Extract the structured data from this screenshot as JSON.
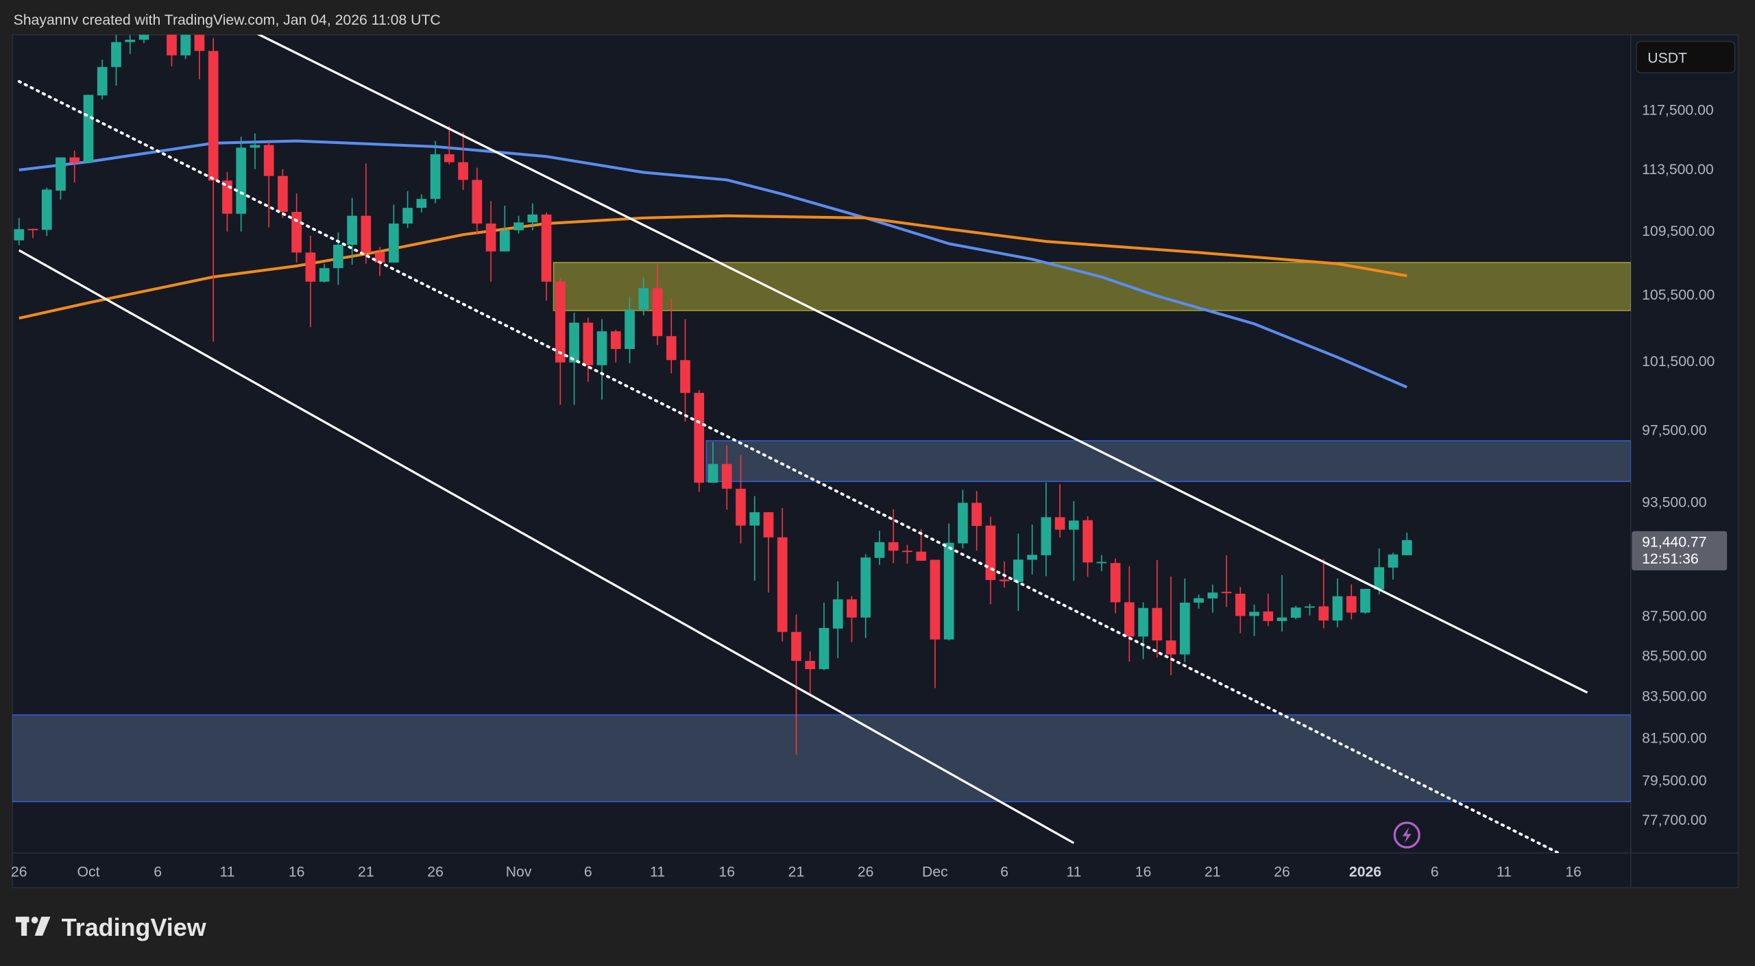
{
  "header": {
    "attribution": "Shayannv created with TradingView.com, Jan 04, 2026 11:08 UTC"
  },
  "branding": {
    "logo_text": "TradingView"
  },
  "price_axis": {
    "currency_button": "USDT"
  },
  "current_price": {
    "value": "91,440.77",
    "countdown": "12:51:36"
  },
  "colors": {
    "up": "#22ab94",
    "down": "#f23645",
    "ma_blue": "#5b8def",
    "ma_orange": "#f08a1c",
    "pane_bg": "#151924",
    "page_bg": "#202020",
    "supply_zone": "#6b6a2e",
    "demand_zone": "#354259",
    "zone_border": "#2f5bd6",
    "event_icon": "#b061c9"
  },
  "icons": {
    "event_marker": "lightning-icon",
    "logo": "tradingview-logo-icon"
  },
  "chart_data": {
    "type": "candlestick",
    "title": "",
    "y_scale": "log",
    "ylim": [
      76480,
      122830
    ],
    "xlim": [
      "2025-09-26",
      "2026-01-20"
    ],
    "grid": false,
    "y_ticks": [
      {
        "value": 117500,
        "label": "117,500.00"
      },
      {
        "value": 113500,
        "label": "113,500.00"
      },
      {
        "value": 109500,
        "label": "109,500.00"
      },
      {
        "value": 105500,
        "label": "105,500.00"
      },
      {
        "value": 101500,
        "label": "101,500.00"
      },
      {
        "value": 97500,
        "label": "97,500.00"
      },
      {
        "value": 93500,
        "label": "93,500.00"
      },
      {
        "value": 87500,
        "label": "87,500.00"
      },
      {
        "value": 85500,
        "label": "85,500.00"
      },
      {
        "value": 83500,
        "label": "83,500.00"
      },
      {
        "value": 81500,
        "label": "81,500.00"
      },
      {
        "value": 79500,
        "label": "79,500.00"
      },
      {
        "value": 77700,
        "label": "77,700.00"
      }
    ],
    "x_ticks": [
      {
        "date": "2025-09-26",
        "label": "26"
      },
      {
        "date": "2025-10-01",
        "label": "Oct"
      },
      {
        "date": "2025-10-06",
        "label": "6"
      },
      {
        "date": "2025-10-11",
        "label": "11"
      },
      {
        "date": "2025-10-16",
        "label": "16"
      },
      {
        "date": "2025-10-21",
        "label": "21"
      },
      {
        "date": "2025-10-26",
        "label": "26"
      },
      {
        "date": "2025-11-01",
        "label": "Nov"
      },
      {
        "date": "2025-11-06",
        "label": "6"
      },
      {
        "date": "2025-11-11",
        "label": "11"
      },
      {
        "date": "2025-11-16",
        "label": "16"
      },
      {
        "date": "2025-11-21",
        "label": "21"
      },
      {
        "date": "2025-11-26",
        "label": "26"
      },
      {
        "date": "2025-12-01",
        "label": "Dec"
      },
      {
        "date": "2025-12-06",
        "label": "6"
      },
      {
        "date": "2025-12-11",
        "label": "11"
      },
      {
        "date": "2025-12-16",
        "label": "16"
      },
      {
        "date": "2025-12-21",
        "label": "21"
      },
      {
        "date": "2025-12-26",
        "label": "26"
      },
      {
        "date": "2026-01-01",
        "label": "2026",
        "bold": true
      },
      {
        "date": "2026-01-06",
        "label": "6"
      },
      {
        "date": "2026-01-11",
        "label": "11"
      },
      {
        "date": "2026-01-16",
        "label": "16"
      }
    ],
    "candles_columns": [
      "date",
      "open",
      "high",
      "low",
      "close"
    ],
    "candles": [
      [
        "2025-09-26",
        108890,
        110320,
        108580,
        109600
      ],
      [
        "2025-09-27",
        109620,
        109640,
        109030,
        109600
      ],
      [
        "2025-09-28",
        109560,
        112290,
        109170,
        112160
      ],
      [
        "2025-09-29",
        112090,
        114280,
        111500,
        114280
      ],
      [
        "2025-09-30",
        114280,
        114730,
        112620,
        113930
      ],
      [
        "2025-10-01",
        113960,
        118520,
        113930,
        118520
      ],
      [
        "2025-10-02",
        118480,
        120970,
        118200,
        120460
      ],
      [
        "2025-10-03",
        120460,
        122740,
        119160,
        122220
      ],
      [
        "2025-10-04",
        122220,
        122740,
        121370,
        122390
      ],
      [
        "2025-10-05",
        122390,
        125600,
        122140,
        123500
      ],
      [
        "2025-10-06",
        123500,
        126200,
        123100,
        124700
      ],
      [
        "2025-10-07",
        124700,
        125100,
        120500,
        121280
      ],
      [
        "2025-10-08",
        121280,
        124000,
        121010,
        123300
      ],
      [
        "2025-10-09",
        123300,
        123800,
        119600,
        121590
      ],
      [
        "2025-10-10",
        121590,
        122500,
        102650,
        112750
      ],
      [
        "2025-10-11",
        112750,
        113320,
        109450,
        110590
      ],
      [
        "2025-10-12",
        110590,
        115660,
        109450,
        114930
      ],
      [
        "2025-10-13",
        114930,
        115890,
        113500,
        115110
      ],
      [
        "2025-10-14",
        115110,
        115300,
        109720,
        113050
      ],
      [
        "2025-10-15",
        113050,
        113500,
        110320,
        110710
      ],
      [
        "2025-10-16",
        110710,
        111900,
        107500,
        108120
      ],
      [
        "2025-10-17",
        108120,
        109180,
        103520,
        106300
      ],
      [
        "2025-10-18",
        106300,
        107420,
        106250,
        107140
      ],
      [
        "2025-10-19",
        107140,
        109390,
        106100,
        108610
      ],
      [
        "2025-10-20",
        108610,
        111620,
        107350,
        110460
      ],
      [
        "2025-10-21",
        110460,
        113870,
        107420,
        108120
      ],
      [
        "2025-10-22",
        108120,
        108470,
        106660,
        107490
      ],
      [
        "2025-10-23",
        107490,
        111180,
        107490,
        109960
      ],
      [
        "2025-10-24",
        109960,
        112060,
        109680,
        110970
      ],
      [
        "2025-10-25",
        110970,
        111840,
        110680,
        111550
      ],
      [
        "2025-10-26",
        111550,
        115380,
        111260,
        114490
      ],
      [
        "2025-10-27",
        114490,
        116380,
        113810,
        113960
      ],
      [
        "2025-10-28",
        113960,
        115980,
        112130,
        112790
      ],
      [
        "2025-10-29",
        112790,
        113590,
        109250,
        109960
      ],
      [
        "2025-10-30",
        109960,
        111400,
        106300,
        108190
      ],
      [
        "2025-10-31",
        108190,
        111110,
        108190,
        109530
      ],
      [
        "2025-11-01",
        109530,
        110460,
        109320,
        110030
      ],
      [
        "2025-11-02",
        110030,
        111260,
        109530,
        110540
      ],
      [
        "2025-11-03",
        110540,
        110680,
        105140,
        106300
      ],
      [
        "2025-11-04",
        106300,
        106520,
        98940,
        101410
      ],
      [
        "2025-11-05",
        101410,
        104400,
        98940,
        103790
      ],
      [
        "2025-11-06",
        103790,
        104100,
        100280,
        101250
      ],
      [
        "2025-11-07",
        101250,
        104000,
        99240,
        103270
      ],
      [
        "2025-11-08",
        103270,
        103370,
        101410,
        102210
      ],
      [
        "2025-11-09",
        102210,
        105380,
        101370,
        104590
      ],
      [
        "2025-11-10",
        104590,
        106570,
        104240,
        105900
      ],
      [
        "2025-11-11",
        105900,
        107410,
        102450,
        102980
      ],
      [
        "2025-11-12",
        102980,
        105240,
        100770,
        101550
      ],
      [
        "2025-11-13",
        101550,
        104000,
        97980,
        99630
      ],
      [
        "2025-11-14",
        99630,
        99790,
        94050,
        94550
      ],
      [
        "2025-11-15",
        94550,
        96820,
        94550,
        95590
      ],
      [
        "2025-11-16",
        95590,
        96630,
        93080,
        94220
      ],
      [
        "2025-11-17",
        94220,
        96070,
        91260,
        92220
      ],
      [
        "2025-11-18",
        92220,
        93820,
        89310,
        92940
      ],
      [
        "2025-11-19",
        92940,
        92940,
        88690,
        91590
      ],
      [
        "2025-11-20",
        91590,
        93170,
        86200,
        86680
      ],
      [
        "2025-11-21",
        86680,
        87570,
        80710,
        85230
      ],
      [
        "2025-11-22",
        85230,
        85700,
        83610,
        84820
      ],
      [
        "2025-11-23",
        84820,
        88180,
        84770,
        86880
      ],
      [
        "2025-11-24",
        86850,
        89270,
        85370,
        88340
      ],
      [
        "2025-11-25",
        88340,
        88510,
        86170,
        87410
      ],
      [
        "2025-11-26",
        87410,
        90700,
        86370,
        90520
      ],
      [
        "2025-11-27",
        90500,
        91940,
        90130,
        91330
      ],
      [
        "2025-11-28",
        91330,
        93100,
        90230,
        90880
      ],
      [
        "2025-11-29",
        90880,
        91190,
        90190,
        90850
      ],
      [
        "2025-11-30",
        90830,
        92030,
        90350,
        90350
      ],
      [
        "2025-12-01",
        90400,
        90400,
        83890,
        86300
      ],
      [
        "2025-12-02",
        86300,
        92330,
        86250,
        91300
      ],
      [
        "2025-12-03",
        91270,
        94160,
        91000,
        93450
      ],
      [
        "2025-12-04",
        93450,
        94100,
        90880,
        92200
      ],
      [
        "2025-12-05",
        92220,
        92700,
        88090,
        89340
      ],
      [
        "2025-12-06",
        89360,
        90320,
        88950,
        89280
      ],
      [
        "2025-12-07",
        89240,
        91790,
        87750,
        90410
      ],
      [
        "2025-12-08",
        90400,
        92280,
        89630,
        90660
      ],
      [
        "2025-12-09",
        90640,
        94560,
        89540,
        92670
      ],
      [
        "2025-12-10",
        92670,
        94470,
        91580,
        92000
      ],
      [
        "2025-12-11",
        92000,
        93540,
        89300,
        92490
      ],
      [
        "2025-12-12",
        92510,
        92730,
        89510,
        90260
      ],
      [
        "2025-12-13",
        90260,
        90650,
        89810,
        90290
      ],
      [
        "2025-12-14",
        90230,
        90470,
        87630,
        88190
      ],
      [
        "2025-12-15",
        88190,
        90060,
        85200,
        86450
      ],
      [
        "2025-12-16",
        86450,
        88190,
        85320,
        87900
      ],
      [
        "2025-12-17",
        87900,
        90380,
        85400,
        86250
      ],
      [
        "2025-12-18",
        86250,
        89520,
        84520,
        85550
      ],
      [
        "2025-12-19",
        85550,
        89420,
        85170,
        88170
      ],
      [
        "2025-12-20",
        88170,
        88590,
        87860,
        88400
      ],
      [
        "2025-12-21",
        88390,
        89100,
        87660,
        88690
      ],
      [
        "2025-12-22",
        88730,
        90640,
        87950,
        88690
      ],
      [
        "2025-12-23",
        88630,
        88980,
        86620,
        87490
      ],
      [
        "2025-12-24",
        87490,
        88070,
        86470,
        87700
      ],
      [
        "2025-12-25",
        87720,
        88630,
        86970,
        87230
      ],
      [
        "2025-12-26",
        87230,
        89600,
        86700,
        87410
      ],
      [
        "2025-12-27",
        87400,
        88010,
        87310,
        87920
      ],
      [
        "2025-12-28",
        87930,
        88110,
        87510,
        87980
      ],
      [
        "2025-12-29",
        87980,
        90440,
        86870,
        87260
      ],
      [
        "2025-12-30",
        87260,
        89420,
        86910,
        88500
      ],
      [
        "2025-12-31",
        88510,
        89120,
        87310,
        87660
      ],
      [
        "2026-01-01",
        87660,
        88880,
        87600,
        88880
      ],
      [
        "2026-01-02",
        88850,
        91000,
        88590,
        90010
      ],
      [
        "2026-01-03",
        89990,
        90770,
        89360,
        90680
      ],
      [
        "2026-01-04",
        90640,
        91840,
        90640,
        91441
      ]
    ],
    "moving_averages": [
      {
        "color": "#5b8def",
        "points": [
          [
            "2025-09-26",
            113450
          ],
          [
            "2025-10-01",
            113990
          ],
          [
            "2025-10-10",
            115230
          ],
          [
            "2025-10-16",
            115380
          ],
          [
            "2025-10-26",
            115000
          ],
          [
            "2025-11-03",
            114340
          ],
          [
            "2025-11-10",
            113290
          ],
          [
            "2025-11-16",
            112790
          ],
          [
            "2025-11-20",
            111860
          ],
          [
            "2025-11-26",
            110320
          ],
          [
            "2025-12-02",
            108680
          ],
          [
            "2025-12-08",
            107700
          ],
          [
            "2025-12-13",
            106590
          ],
          [
            "2025-12-17",
            105420
          ],
          [
            "2025-12-24",
            103720
          ],
          [
            "2025-12-30",
            101720
          ],
          [
            "2026-01-04",
            99960
          ]
        ]
      },
      {
        "color": "#f08a1c",
        "points": [
          [
            "2025-09-26",
            104060
          ],
          [
            "2025-10-01",
            105000
          ],
          [
            "2025-10-10",
            106590
          ],
          [
            "2025-10-16",
            107280
          ],
          [
            "2025-10-22",
            108190
          ],
          [
            "2025-10-28",
            109250
          ],
          [
            "2025-11-03",
            109960
          ],
          [
            "2025-11-10",
            110320
          ],
          [
            "2025-11-16",
            110460
          ],
          [
            "2025-11-26",
            110320
          ],
          [
            "2025-12-02",
            109600
          ],
          [
            "2025-12-09",
            108820
          ],
          [
            "2025-12-20",
            108120
          ],
          [
            "2025-12-30",
            107420
          ],
          [
            "2026-01-04",
            106660
          ]
        ]
      }
    ],
    "zones": [
      {
        "kind": "supply",
        "start": "2025-11-04",
        "top": 107490,
        "bottom": 104530,
        "fill": "#6b6a2e",
        "border": "#a39c35"
      },
      {
        "kind": "resistance",
        "start": "2025-11-15",
        "top": 96890,
        "bottom": 94620,
        "fill": "#354259",
        "border": "#2f5bd6"
      },
      {
        "kind": "demand",
        "start": "2025-09-26",
        "top": 82590,
        "bottom": 78520,
        "fill": "#354259",
        "border": "#2f5bd6"
      }
    ],
    "trendlines": [
      {
        "style": "solid",
        "from": [
          "2025-10-13",
          122900
        ],
        "to": [
          "2026-01-17",
          83670
        ]
      },
      {
        "style": "solid",
        "from": [
          "2025-09-26",
          108260
        ],
        "to": [
          "2025-12-11",
          76650
        ]
      },
      {
        "style": "dotted",
        "from": [
          "2025-09-26",
          119450
        ],
        "to": [
          "2026-01-15",
          76180
        ]
      }
    ],
    "last_price": 91440.77,
    "event_marker_date": "2026-01-04"
  }
}
